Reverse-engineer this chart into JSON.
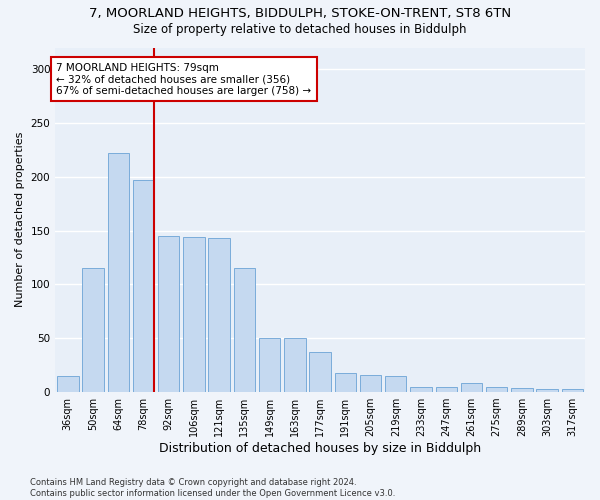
{
  "title_line1": "7, MOORLAND HEIGHTS, BIDDULPH, STOKE-ON-TRENT, ST8 6TN",
  "title_line2": "Size of property relative to detached houses in Biddulph",
  "xlabel": "Distribution of detached houses by size in Biddulph",
  "ylabel": "Number of detached properties",
  "categories": [
    "36sqm",
    "50sqm",
    "64sqm",
    "78sqm",
    "92sqm",
    "106sqm",
    "121sqm",
    "135sqm",
    "149sqm",
    "163sqm",
    "177sqm",
    "191sqm",
    "205sqm",
    "219sqm",
    "233sqm",
    "247sqm",
    "261sqm",
    "275sqm",
    "289sqm",
    "303sqm",
    "317sqm"
  ],
  "values": [
    15,
    115,
    222,
    197,
    145,
    144,
    143,
    115,
    50,
    50,
    37,
    18,
    16,
    15,
    5,
    5,
    8,
    5,
    4,
    3,
    3
  ],
  "bar_color": "#c5d9f0",
  "bar_edge_color": "#7aacda",
  "vline_color": "#cc0000",
  "annotation_text": "7 MOORLAND HEIGHTS: 79sqm\n← 32% of detached houses are smaller (356)\n67% of semi-detached houses are larger (758) →",
  "annotation_box_color": "#ffffff",
  "annotation_box_edge": "#cc0000",
  "ylim": [
    0,
    320
  ],
  "yticks": [
    0,
    50,
    100,
    150,
    200,
    250,
    300
  ],
  "bg_color": "#e8eff8",
  "grid_color": "#ffffff",
  "footer": "Contains HM Land Registry data © Crown copyright and database right 2024.\nContains public sector information licensed under the Open Government Licence v3.0.",
  "title_fontsize": 9.5,
  "subtitle_fontsize": 8.5,
  "tick_fontsize": 7,
  "ylabel_fontsize": 8,
  "xlabel_fontsize": 9,
  "annotation_fontsize": 7.5,
  "footer_fontsize": 6
}
